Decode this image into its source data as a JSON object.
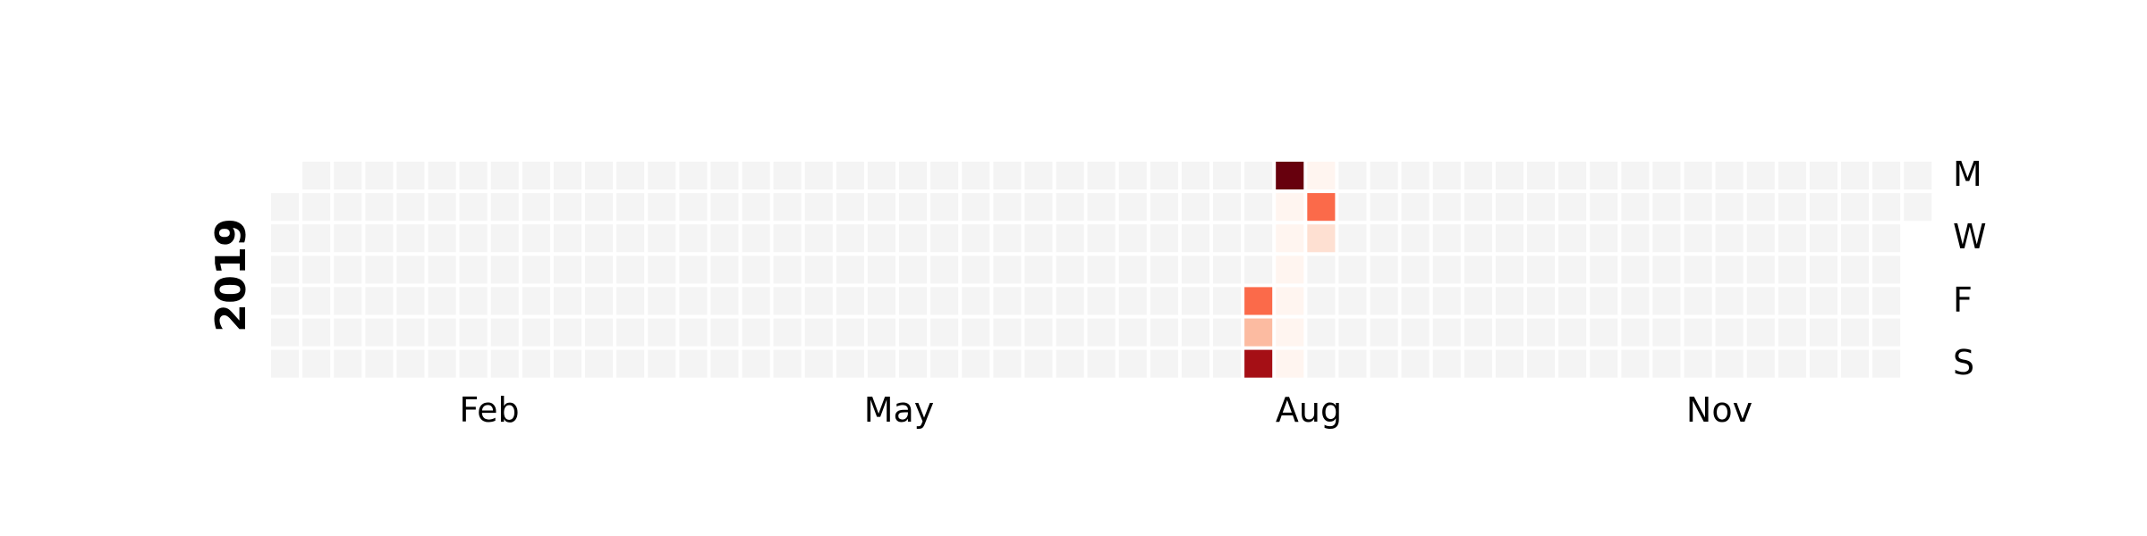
{
  "chart_data": {
    "type": "heatmap",
    "subtype": "calendar",
    "year_label": "2019",
    "month_labels": [
      "Feb",
      "May",
      "Aug",
      "Nov"
    ],
    "weekday_labels": [
      "M",
      "W",
      "F",
      "S"
    ],
    "colormap": "Reds",
    "colors": {
      "empty": "#f4f4f4",
      "background": "#ffffff",
      "scale": [
        "#fff5f0",
        "#fee0d2",
        "#fcbba1",
        "#fc9272",
        "#fb6a4a",
        "#ef3b2c",
        "#cb181d",
        "#a50f15",
        "#67000d"
      ]
    },
    "value_range": [
      0,
      1
    ],
    "start_date": "2019-01-01",
    "end_date": "2019-12-31",
    "default_value": null,
    "values": [
      {
        "date": "2019-08-09",
        "value": 0.45
      },
      {
        "date": "2019-08-10",
        "value": 0.3
      },
      {
        "date": "2019-08-11",
        "value": 0.82
      },
      {
        "date": "2019-08-12",
        "value": 1.0
      },
      {
        "date": "2019-08-13",
        "value": 0.02
      },
      {
        "date": "2019-08-14",
        "value": 0.02
      },
      {
        "date": "2019-08-15",
        "value": 0.02
      },
      {
        "date": "2019-08-16",
        "value": 0.02
      },
      {
        "date": "2019-08-17",
        "value": 0.02
      },
      {
        "date": "2019-08-18",
        "value": 0.02
      },
      {
        "date": "2019-08-19",
        "value": 0.02
      },
      {
        "date": "2019-08-20",
        "value": 0.45
      },
      {
        "date": "2019-08-21",
        "value": 0.12
      }
    ]
  }
}
